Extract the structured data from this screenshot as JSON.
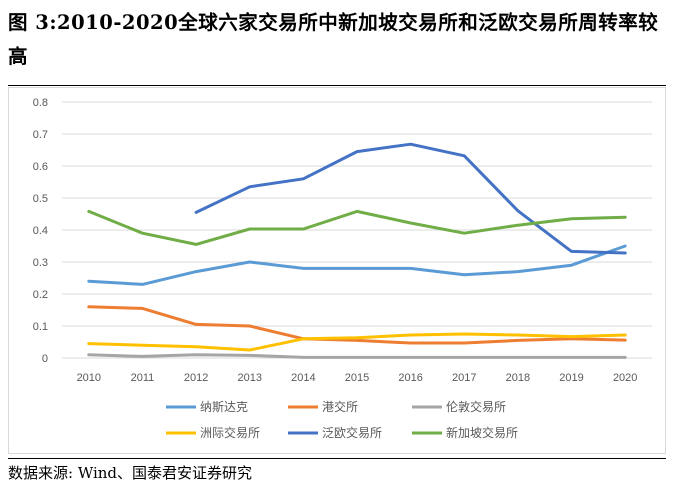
{
  "header": {
    "title": "图 3:2010-2020全球六家交易所中新加坡交易所和泛欧交易所周转率较高"
  },
  "footer": {
    "source": "数据来源: Wind、国泰君安证券研究"
  },
  "chart_data": {
    "type": "line",
    "title": "图 3:2010-2020全球六家交易所中新加坡交易所和泛欧交易所周转率较高",
    "xlabel": "",
    "ylabel": "",
    "ylim": [
      0,
      0.8
    ],
    "yticks": [
      "0",
      "0.1",
      "0.2",
      "0.3",
      "0.4",
      "0.5",
      "0.6",
      "0.7",
      "0.8"
    ],
    "grid": true,
    "legend_position": "bottom",
    "categories": [
      "2010",
      "2011",
      "2012",
      "2013",
      "2014",
      "2015",
      "2016",
      "2017",
      "2018",
      "2019",
      "2020"
    ],
    "series": [
      {
        "name": "纳斯达克",
        "color": "#5b9bd5",
        "values": [
          0.24,
          0.23,
          0.27,
          0.3,
          0.28,
          0.28,
          0.28,
          0.26,
          0.27,
          0.29,
          0.35
        ]
      },
      {
        "name": "港交所",
        "color": "#ed7d31",
        "values": [
          0.16,
          0.155,
          0.105,
          0.1,
          0.06,
          0.055,
          0.047,
          0.047,
          0.055,
          0.06,
          0.056
        ]
      },
      {
        "name": "伦敦交易所",
        "color": "#a5a5a5",
        "values": [
          0.01,
          0.005,
          0.01,
          0.008,
          0.002,
          0.002,
          0.002,
          0.002,
          0.002,
          0.002,
          0.002
        ]
      },
      {
        "name": "洲际交易所",
        "color": "#ffc000",
        "values": [
          0.045,
          0.04,
          0.035,
          0.025,
          0.06,
          0.063,
          0.072,
          0.075,
          0.072,
          0.067,
          0.072
        ]
      },
      {
        "name": "泛欧交易所",
        "color": "#4472c4",
        "values": [
          null,
          null,
          0.455,
          0.535,
          0.56,
          0.645,
          0.668,
          0.632,
          0.46,
          0.333,
          0.328
        ]
      },
      {
        "name": "新加坡交易所",
        "color": "#70ad47",
        "values": [
          0.458,
          0.39,
          0.355,
          0.403,
          0.403,
          0.458,
          0.422,
          0.39,
          0.415,
          0.435,
          0.44
        ]
      }
    ]
  }
}
